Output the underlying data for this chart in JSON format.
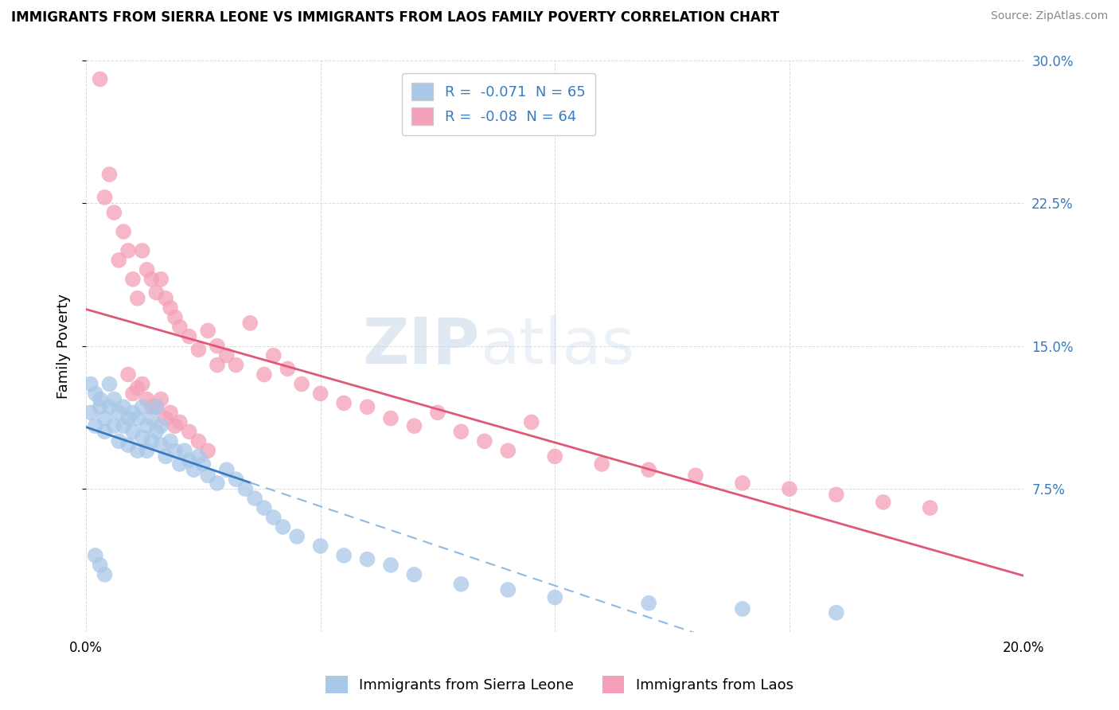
{
  "title": "IMMIGRANTS FROM SIERRA LEONE VS IMMIGRANTS FROM LAOS FAMILY POVERTY CORRELATION CHART",
  "source": "Source: ZipAtlas.com",
  "ylabel": "Family Poverty",
  "xlim": [
    0.0,
    0.2
  ],
  "ylim": [
    0.0,
    0.3
  ],
  "xticks": [
    0.0,
    0.05,
    0.1,
    0.15,
    0.2
  ],
  "yticks": [
    0.075,
    0.15,
    0.225,
    0.3
  ],
  "sierra_leone_color": "#a8c8e8",
  "laos_color": "#f4a0b8",
  "sierra_leone_line_color": "#3a7abf",
  "laos_line_color": "#e05878",
  "sierra_leone_dash_color": "#90b8e0",
  "R_sierra": -0.071,
  "N_sierra": 65,
  "R_laos": -0.08,
  "N_laos": 64,
  "legend_label_sierra": "Immigrants from Sierra Leone",
  "legend_label_laos": "Immigrants from Laos",
  "background_color": "#ffffff",
  "grid_color": "#cccccc",
  "sierra_leone_x": [
    0.001,
    0.001,
    0.002,
    0.002,
    0.003,
    0.003,
    0.004,
    0.004,
    0.005,
    0.005,
    0.006,
    0.006,
    0.007,
    0.007,
    0.008,
    0.008,
    0.009,
    0.009,
    0.01,
    0.01,
    0.011,
    0.011,
    0.012,
    0.012,
    0.013,
    0.013,
    0.014,
    0.014,
    0.015,
    0.015,
    0.016,
    0.016,
    0.017,
    0.018,
    0.019,
    0.02,
    0.021,
    0.022,
    0.023,
    0.024,
    0.025,
    0.026,
    0.028,
    0.03,
    0.032,
    0.034,
    0.036,
    0.038,
    0.04,
    0.042,
    0.045,
    0.05,
    0.055,
    0.06,
    0.065,
    0.07,
    0.08,
    0.09,
    0.1,
    0.12,
    0.14,
    0.16,
    0.002,
    0.003,
    0.004
  ],
  "sierra_leone_y": [
    0.13,
    0.115,
    0.125,
    0.108,
    0.118,
    0.122,
    0.112,
    0.105,
    0.13,
    0.118,
    0.108,
    0.122,
    0.115,
    0.1,
    0.118,
    0.108,
    0.112,
    0.098,
    0.115,
    0.105,
    0.095,
    0.112,
    0.102,
    0.118,
    0.108,
    0.095,
    0.112,
    0.1,
    0.105,
    0.118,
    0.098,
    0.108,
    0.092,
    0.1,
    0.095,
    0.088,
    0.095,
    0.09,
    0.085,
    0.092,
    0.088,
    0.082,
    0.078,
    0.085,
    0.08,
    0.075,
    0.07,
    0.065,
    0.06,
    0.055,
    0.05,
    0.045,
    0.04,
    0.038,
    0.035,
    0.03,
    0.025,
    0.022,
    0.018,
    0.015,
    0.012,
    0.01,
    0.04,
    0.035,
    0.03
  ],
  "laos_x": [
    0.003,
    0.004,
    0.005,
    0.006,
    0.007,
    0.008,
    0.009,
    0.01,
    0.011,
    0.012,
    0.013,
    0.014,
    0.015,
    0.016,
    0.017,
    0.018,
    0.019,
    0.02,
    0.022,
    0.024,
    0.026,
    0.028,
    0.03,
    0.032,
    0.035,
    0.038,
    0.04,
    0.043,
    0.046,
    0.05,
    0.055,
    0.06,
    0.065,
    0.07,
    0.075,
    0.08,
    0.085,
    0.09,
    0.095,
    0.1,
    0.11,
    0.12,
    0.13,
    0.14,
    0.15,
    0.16,
    0.17,
    0.18,
    0.01,
    0.012,
    0.014,
    0.016,
    0.018,
    0.02,
    0.022,
    0.024,
    0.026,
    0.028,
    0.009,
    0.011,
    0.013,
    0.015,
    0.017,
    0.019
  ],
  "laos_y": [
    0.29,
    0.228,
    0.24,
    0.22,
    0.195,
    0.21,
    0.2,
    0.185,
    0.175,
    0.2,
    0.19,
    0.185,
    0.178,
    0.185,
    0.175,
    0.17,
    0.165,
    0.16,
    0.155,
    0.148,
    0.158,
    0.15,
    0.145,
    0.14,
    0.162,
    0.135,
    0.145,
    0.138,
    0.13,
    0.125,
    0.12,
    0.118,
    0.112,
    0.108,
    0.115,
    0.105,
    0.1,
    0.095,
    0.11,
    0.092,
    0.088,
    0.085,
    0.082,
    0.078,
    0.075,
    0.072,
    0.068,
    0.065,
    0.125,
    0.13,
    0.118,
    0.122,
    0.115,
    0.11,
    0.105,
    0.1,
    0.095,
    0.14,
    0.135,
    0.128,
    0.122,
    0.118,
    0.112,
    0.108
  ]
}
